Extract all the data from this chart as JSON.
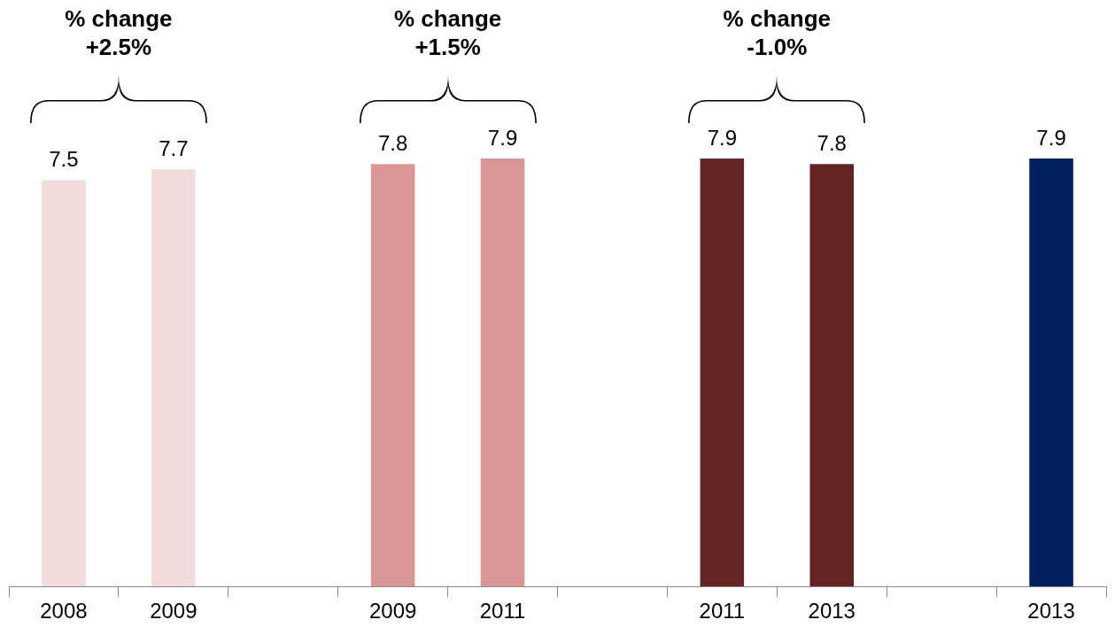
{
  "chart_data": {
    "type": "bar",
    "categories": [
      "2008",
      "2009",
      null,
      "2009",
      "2011",
      null,
      "2011",
      "2013",
      null,
      "2013"
    ],
    "values": [
      7.5,
      7.7,
      null,
      7.8,
      7.9,
      null,
      7.9,
      7.8,
      null,
      7.9
    ],
    "colors": [
      "#f2dcdb",
      "#f2dcdb",
      null,
      "#d99694",
      "#d99694",
      null,
      "#632523",
      "#632523",
      null,
      "#002060"
    ],
    "data_labels": true,
    "grid": false,
    "legend": false,
    "annotations": [
      "% change\n+2.5%",
      "% change\n+1.5%",
      "% change\n-1.0%"
    ]
  }
}
